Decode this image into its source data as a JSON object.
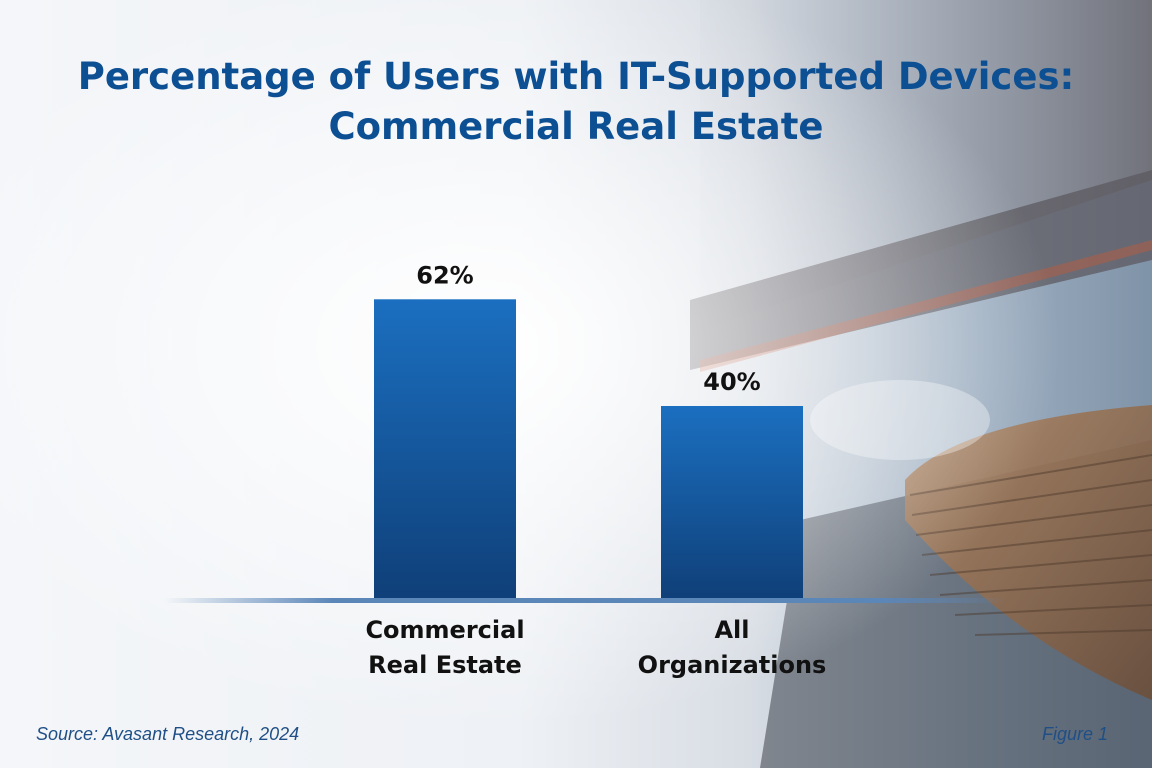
{
  "title_line1": "Percentage of Users with IT-Supported Devices:",
  "title_line2": "Commercial Real Estate",
  "source": "Source: Avasant Research, 2024",
  "figure_label": "Figure 1",
  "colors": {
    "title": "#0d4f93",
    "bar_top": "#1b6fc0",
    "bar_bottom": "#0f3f78",
    "baseline": "#5b86b8"
  },
  "chart_data": {
    "type": "bar",
    "title": "Percentage of Users with IT-Supported Devices: Commercial Real Estate",
    "categories": [
      "Commercial Real Estate",
      "All Organizations"
    ],
    "category_lines": [
      [
        "Commercial",
        "Real Estate"
      ],
      [
        "All",
        "Organizations"
      ]
    ],
    "values": [
      62,
      40
    ],
    "value_labels": [
      "62%",
      "40%"
    ],
    "unit": "%",
    "ylim": [
      0,
      100
    ],
    "grid": false,
    "legend": "none"
  }
}
